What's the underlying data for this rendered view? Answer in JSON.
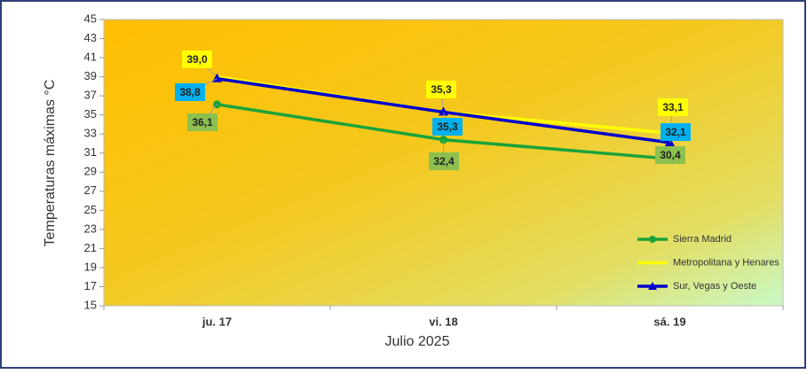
{
  "chart_data": {
    "type": "line",
    "y_label": "Temperaturas máximas °C",
    "x_label": "Julio 2025",
    "categories": [
      "ju. 17",
      "vi. 18",
      "sá. 19"
    ],
    "ylim": [
      15,
      45
    ],
    "yticks": [
      15,
      17,
      19,
      21,
      23,
      25,
      27,
      29,
      31,
      33,
      35,
      37,
      39,
      41,
      43,
      45
    ],
    "legend": "lower right",
    "series": [
      {
        "name": "Sierra Madrid",
        "color": "#1aa33a",
        "label_color": "#8dc04f",
        "marker": "circle",
        "values": [
          36.1,
          32.4,
          30.4
        ],
        "value_labels": [
          "36,1",
          "32,4",
          "30,4"
        ]
      },
      {
        "name": "Metropolitana y Henares",
        "color": "#ffff00",
        "label_color": "#ffff00",
        "marker": "none",
        "values": [
          39.0,
          35.3,
          33.1
        ],
        "value_labels": [
          "39,0",
          "35,3",
          "33,1"
        ]
      },
      {
        "name": "Sur, Vegas y Oeste",
        "color": "#0000cc",
        "label_color": "#00b0f0",
        "marker": "triangle",
        "values": [
          38.8,
          35.3,
          32.1
        ],
        "value_labels": [
          "38,8",
          "35,3",
          "32,1"
        ]
      }
    ]
  }
}
